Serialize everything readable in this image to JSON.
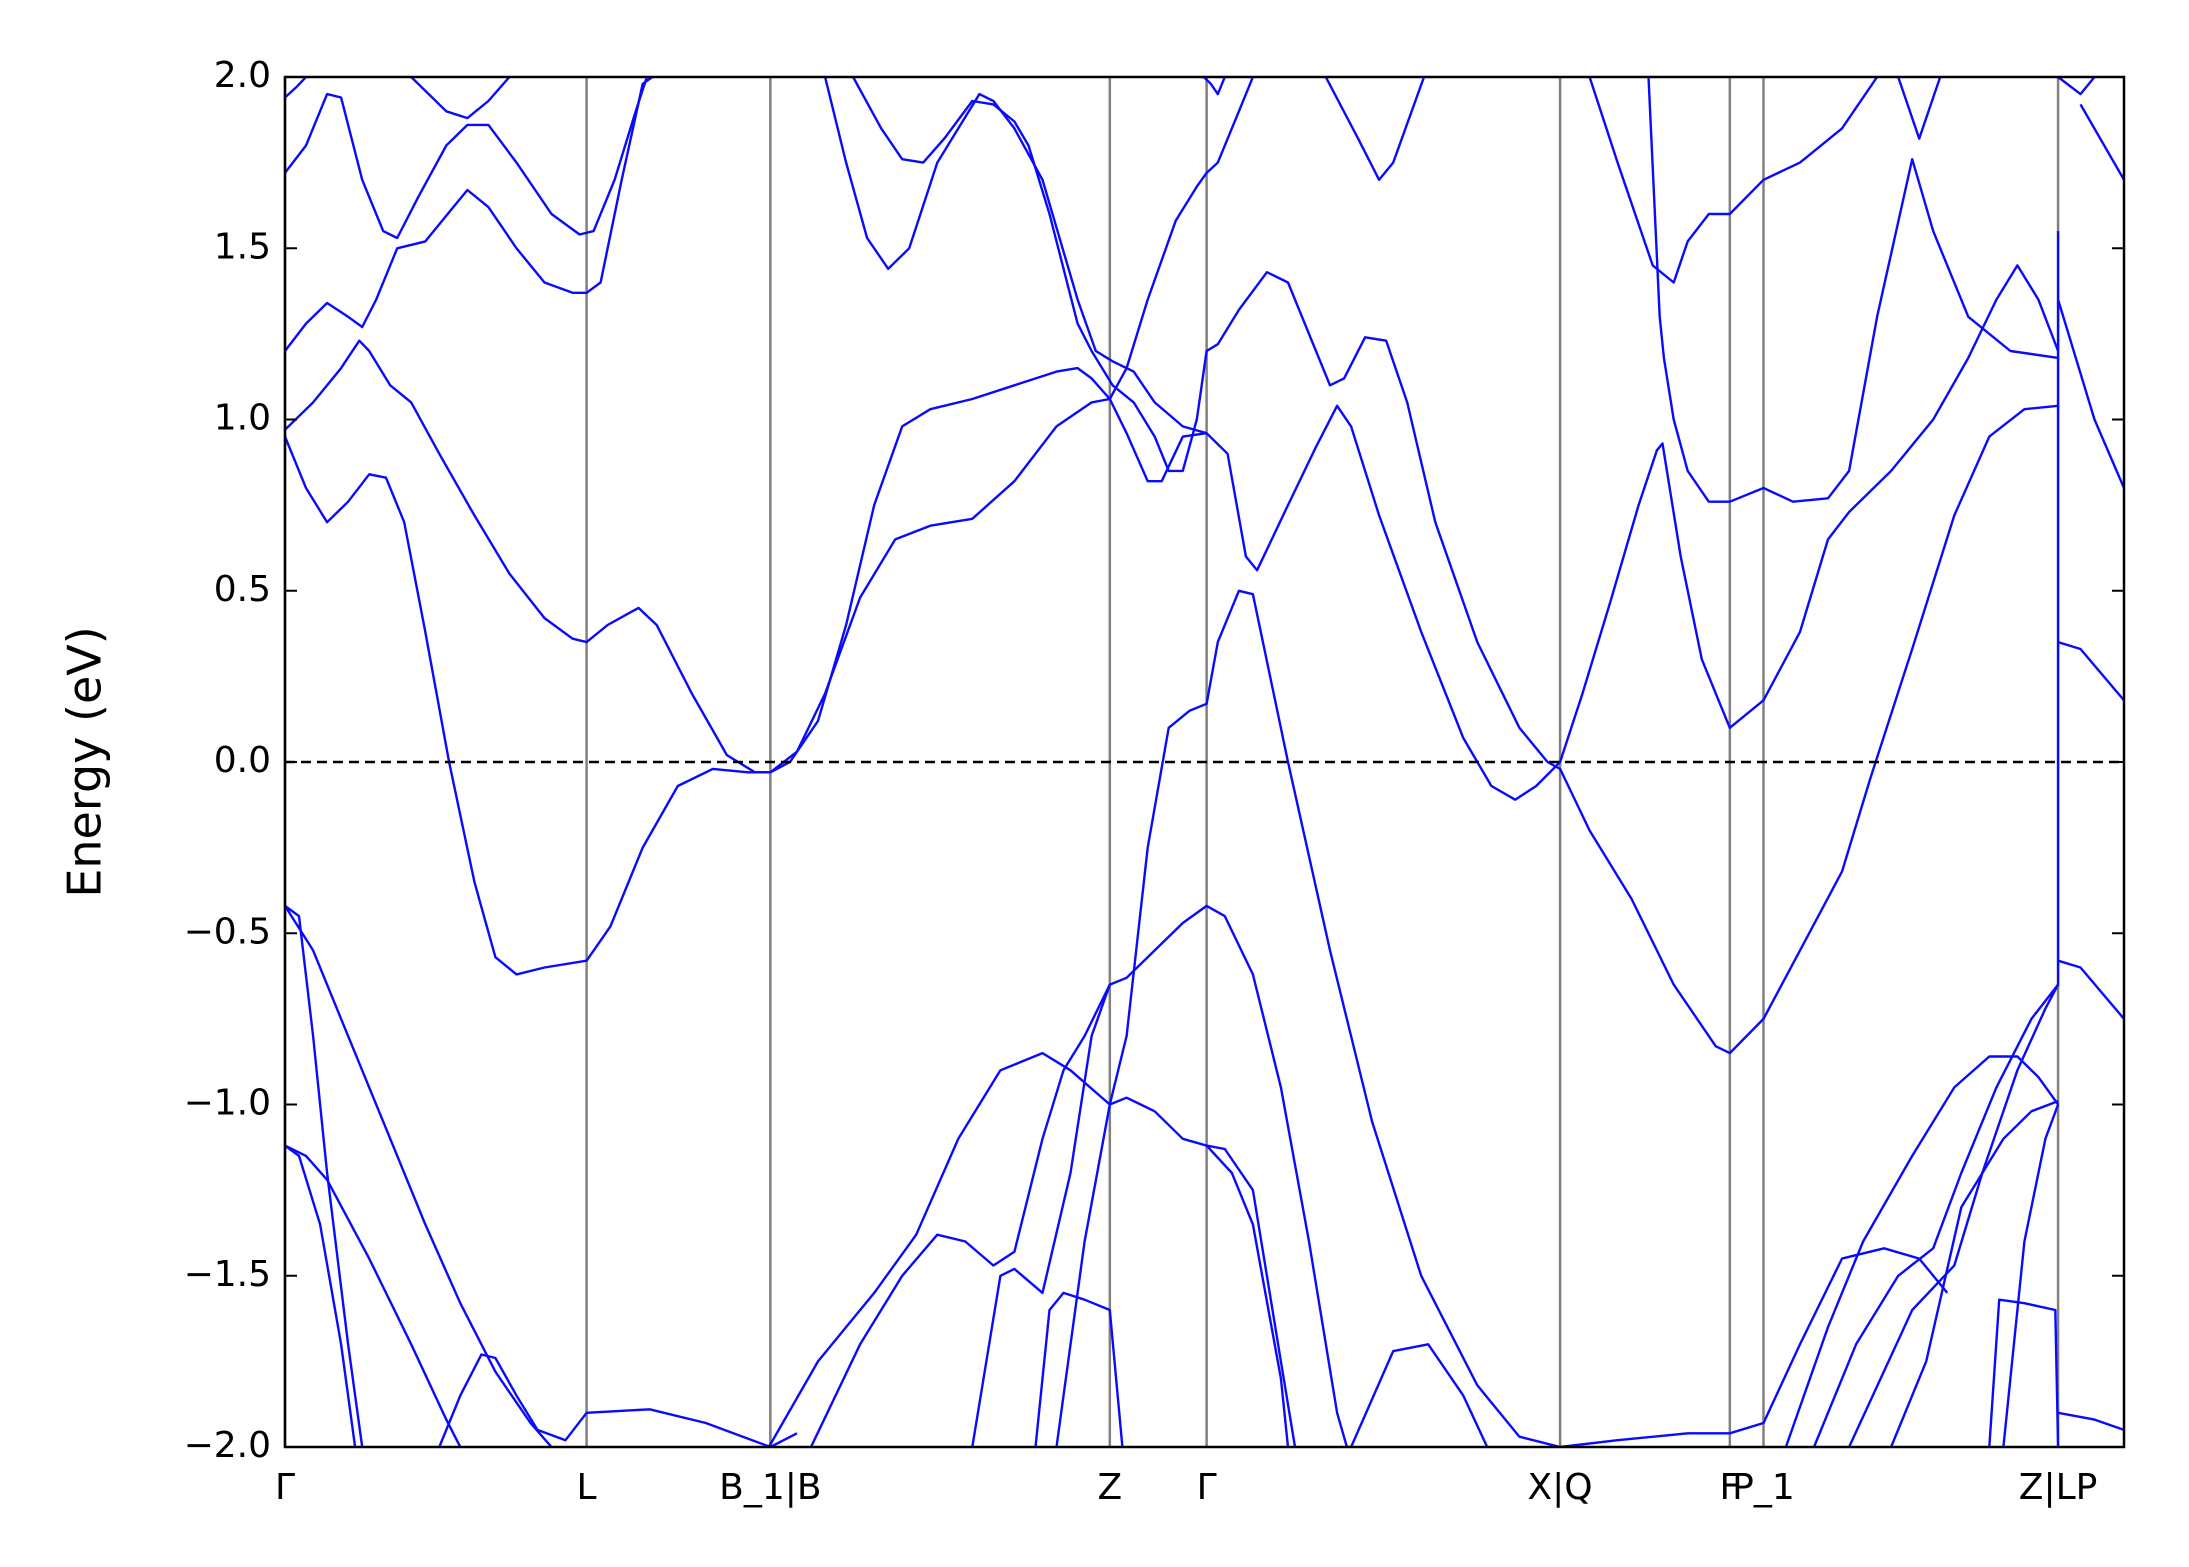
{
  "chart_data": {
    "type": "line",
    "ylabel": "Energy (eV)",
    "color": "#0a0aff",
    "xlim": [
      0,
      1311
    ],
    "ylim": [
      -2,
      2
    ],
    "xticks": [
      {
        "value": 0,
        "label": "Γ"
      },
      {
        "value": 215,
        "label": "L"
      },
      {
        "value": 346,
        "label": "B_1|B"
      },
      {
        "value": 588,
        "label": "Z"
      },
      {
        "value": 657,
        "label": "Γ"
      },
      {
        "value": 909,
        "label": "X|Q"
      },
      {
        "value": 1030,
        "label": "F"
      },
      {
        "value": 1054,
        "label": "P_1"
      },
      {
        "value": 1264,
        "label": "Z|LP"
      }
    ],
    "yticks": [
      {
        "value": -2,
        "label": "−2.0"
      },
      {
        "value": -1.5,
        "label": "−1.5"
      },
      {
        "value": -1,
        "label": "−1.0"
      },
      {
        "value": -0.5,
        "label": "−0.5"
      },
      {
        "value": 0,
        "label": "0.0"
      },
      0.5,
      {
        "value": 1,
        "label": "1.0"
      },
      1.5,
      {
        "value": 2,
        "label": "2.0"
      }
    ],
    "fermi_level": 0,
    "series": [
      {
        "x": [
          0,
          15,
          30,
          45,
          60,
          72,
          85,
          100,
          117,
          135,
          150,
          165,
          185,
          215,
          232,
          255,
          280,
          305,
          330,
          346,
          365,
          385,
          410,
          435,
          460,
          490,
          520,
          550,
          575,
          588,
          600,
          615,
          625,
          640,
          657,
          672,
          685,
          693,
          715,
          735,
          750,
          760,
          780,
          810,
          840,
          860,
          877,
          892,
          909,
          925,
          945,
          965,
          978,
          982,
          995,
          1010,
          1030,
          1054,
          1080,
          1100,
          1115,
          1145,
          1175,
          1200,
          1220,
          1235,
          1250,
          1264
        ],
        "values": [
          0.95,
          0.8,
          0.7,
          0.76,
          0.84,
          0.83,
          0.7,
          0.38,
          0,
          -0.35,
          -0.57,
          -0.62,
          -0.6,
          -0.58,
          -0.48,
          -0.25,
          -0.07,
          -0.02,
          -0.03,
          -0.03,
          0.03,
          0.2,
          0.48,
          0.65,
          0.69,
          0.71,
          0.82,
          0.98,
          1.05,
          1.06,
          0.96,
          0.82,
          0.82,
          0.95,
          0.96,
          0.9,
          0.6,
          0.56,
          0.75,
          0.92,
          1.04,
          0.98,
          0.72,
          0.38,
          0.07,
          -0.07,
          -0.11,
          -0.07,
          0,
          0.2,
          0.47,
          0.75,
          0.91,
          0.93,
          0.6,
          0.3,
          0.1,
          0.18,
          0.38,
          0.65,
          0.73,
          0.85,
          1.0,
          1.18,
          1.35,
          1.45,
          1.35,
          1.2
        ]
      },
      {
        "x": [
          0,
          15,
          30,
          45,
          55,
          65,
          80,
          100,
          120,
          130,
          145,
          165,
          185,
          205,
          215,
          225,
          240,
          255,
          262
        ],
        "values": [
          1.2,
          1.28,
          1.34,
          1.3,
          1.27,
          1.35,
          1.5,
          1.52,
          1.62,
          1.67,
          1.62,
          1.5,
          1.4,
          1.37,
          1.37,
          1.4,
          1.7,
          1.98,
          2
        ]
      },
      {
        "x": [
          0,
          20,
          40,
          53,
          60,
          75,
          90,
          110,
          135,
          160,
          185,
          205,
          215,
          230,
          252,
          265,
          290,
          315,
          335,
          346,
          360,
          380,
          400,
          420,
          440,
          460,
          490,
          520,
          550,
          565,
          575,
          588,
          600,
          615,
          635,
          650,
          657,
          665,
          680,
          690
        ],
        "values": [
          0.97,
          1.05,
          1.15,
          1.23,
          1.2,
          1.1,
          1.05,
          0.9,
          0.72,
          0.55,
          0.42,
          0.36,
          0.35,
          0.4,
          0.45,
          0.4,
          0.2,
          0.02,
          -0.03,
          -0.03,
          0,
          0.12,
          0.4,
          0.75,
          0.98,
          1.03,
          1.06,
          1.1,
          1.14,
          1.15,
          1.12,
          1.06,
          1.15,
          1.35,
          1.58,
          1.68,
          1.72,
          1.75,
          1.9,
          2
        ]
      },
      {
        "x": [
          385,
          400,
          415,
          430,
          445,
          465,
          480,
          495,
          505,
          520,
          540,
          565,
          578,
          590,
          605,
          620,
          640,
          657
        ],
        "values": [
          2,
          1.75,
          1.53,
          1.44,
          1.5,
          1.75,
          1.85,
          1.95,
          1.93,
          1.85,
          1.7,
          1.35,
          1.2,
          1.17,
          1.14,
          1.05,
          0.98,
          0.96
        ]
      },
      {
        "x": [
          405,
          425,
          440,
          455,
          470,
          490,
          505,
          520,
          530,
          545,
          565,
          575,
          590,
          605,
          620,
          630,
          640,
          650,
          657,
          665,
          680,
          700,
          715,
          730,
          745,
          755,
          770,
          785,
          800,
          820,
          850,
          880,
          900,
          909,
          930,
          960,
          990,
          1020,
          1030,
          1054,
          1080,
          1110,
          1130,
          1160,
          1190,
          1215,
          1240,
          1264
        ],
        "values": [
          2,
          1.85,
          1.76,
          1.75,
          1.82,
          1.93,
          1.92,
          1.87,
          1.8,
          1.6,
          1.28,
          1.2,
          1.1,
          1.05,
          0.95,
          0.85,
          0.85,
          1.0,
          1.2,
          1.22,
          1.32,
          1.43,
          1.4,
          1.25,
          1.1,
          1.12,
          1.24,
          1.23,
          1.05,
          0.7,
          0.35,
          0.1,
          0,
          -0.02,
          -0.2,
          -0.4,
          -0.65,
          -0.83,
          -0.85,
          -0.75,
          -0.55,
          -0.32,
          -0.05,
          0.33,
          0.72,
          0.95,
          1.03,
          1.04
        ]
      },
      {
        "x": [
          0,
          15,
          30,
          40,
          55,
          70,
          80,
          95,
          115,
          130,
          145,
          165,
          190,
          210,
          220,
          235,
          250,
          258
        ],
        "values": [
          1.72,
          1.8,
          1.95,
          1.94,
          1.7,
          1.55,
          1.53,
          1.65,
          1.8,
          1.86,
          1.86,
          1.75,
          1.6,
          1.54,
          1.55,
          1.7,
          1.9,
          2
        ]
      },
      {
        "x": [
          0,
          8,
          15
        ],
        "values": [
          1.94,
          1.97,
          2
        ]
      },
      {
        "x": [
          90,
          115,
          130,
          145,
          160
        ],
        "values": [
          2,
          1.9,
          1.88,
          1.93,
          2
        ]
      },
      {
        "x": [
          655,
          660,
          665,
          670
        ],
        "values": [
          2,
          1.98,
          1.95,
          2
        ]
      },
      {
        "x": [
          742,
          765,
          780,
          790,
          812
        ],
        "values": [
          2,
          1.82,
          1.7,
          1.75,
          2
        ]
      },
      {
        "x": [
          930,
          950,
          975,
          990,
          1000,
          1015,
          1030,
          1054,
          1080,
          1110,
          1135
        ],
        "values": [
          2,
          1.75,
          1.45,
          1.4,
          1.52,
          1.6,
          1.6,
          1.7,
          1.75,
          1.85,
          2
        ]
      },
      {
        "x": [
          972,
          980,
          983,
          990,
          1000,
          1015,
          1030,
          1054,
          1075,
          1100,
          1115,
          1135,
          1160,
          1175,
          1200,
          1230,
          1264
        ],
        "values": [
          2,
          1.3,
          1.18,
          1.0,
          0.85,
          0.76,
          0.76,
          0.8,
          0.76,
          0.77,
          0.85,
          1.3,
          1.76,
          1.55,
          1.3,
          1.2,
          1.18
        ]
      },
      {
        "x": [
          1150,
          1165,
          1180
        ],
        "values": [
          2,
          1.82,
          2
        ]
      },
      {
        "x": [
          1264,
          1290,
          1311
        ],
        "values": [
          1.35,
          1.0,
          0.8
        ]
      },
      {
        "x": [
          1264,
          1280,
          1311
        ],
        "values": [
          0.35,
          0.33,
          0.18
        ]
      },
      {
        "x": [
          1264,
          1280,
          1290
        ],
        "values": [
          2,
          1.95,
          2
        ]
      },
      {
        "x": [
          1280,
          1311
        ],
        "values": [
          1.92,
          1.7
        ]
      },
      {
        "x": [
          0,
          20,
          40,
          70,
          100,
          125,
          150,
          175,
          190
        ],
        "values": [
          -0.42,
          -0.55,
          -0.75,
          -1.05,
          -1.35,
          -1.58,
          -1.78,
          -1.93,
          -2
        ]
      },
      {
        "x": [
          0,
          10,
          20,
          30,
          45,
          55
        ],
        "values": [
          -0.42,
          -0.45,
          -0.8,
          -1.2,
          -1.7,
          -2
        ]
      },
      {
        "x": [
          0,
          15,
          30,
          60,
          90,
          115,
          125
        ],
        "values": [
          -1.12,
          -1.15,
          -1.22,
          -1.45,
          -1.7,
          -1.92,
          -2
        ]
      },
      {
        "x": [
          0,
          10,
          25,
          40,
          50
        ],
        "values": [
          -1.12,
          -1.15,
          -1.35,
          -1.7,
          -2
        ]
      },
      {
        "x": [
          110,
          125,
          140,
          150,
          165,
          180,
          200,
          215,
          260,
          300,
          346,
          365
        ],
        "values": [
          -2,
          -1.85,
          -1.73,
          -1.74,
          -1.85,
          -1.95,
          -1.98,
          -1.9,
          -1.89,
          -1.93,
          -2,
          -1.96
        ]
      },
      {
        "x": [
          375,
          410,
          440,
          465,
          485,
          505,
          520,
          540,
          555,
          570,
          588,
          600,
          620,
          640,
          657,
          670,
          690,
          710,
          730,
          750,
          757
        ],
        "values": [
          -2,
          -1.7,
          -1.5,
          -1.38,
          -1.4,
          -1.47,
          -1.43,
          -1.1,
          -0.9,
          -0.8,
          -0.65,
          -0.63,
          -0.55,
          -0.47,
          -0.42,
          -0.45,
          -0.62,
          -0.95,
          -1.4,
          -1.9,
          -2
        ]
      },
      {
        "x": [
          345,
          380,
          420,
          450,
          480,
          510,
          540,
          560,
          588,
          600,
          620,
          640,
          657,
          670,
          690,
          710,
          720
        ],
        "values": [
          -2,
          -1.75,
          -1.55,
          -1.38,
          -1.1,
          -0.9,
          -0.85,
          -0.9,
          -1.0,
          -0.98,
          -1.02,
          -1.1,
          -1.12,
          -1.13,
          -1.25,
          -1.75,
          -2
        ]
      },
      {
        "x": [
          490,
          510,
          520,
          540,
          560,
          575,
          588
        ],
        "values": [
          -2,
          -1.5,
          -1.48,
          -1.55,
          -1.2,
          -0.8,
          -0.65
        ]
      },
      {
        "x": [
          535,
          545,
          555,
          570,
          588,
          597
        ],
        "values": [
          -2,
          -1.6,
          -1.55,
          -1.57,
          -1.6,
          -2
        ]
      },
      {
        "x": [
          550,
          570,
          588,
          600,
          615,
          630,
          645,
          657,
          665,
          680,
          690,
          715,
          745,
          775,
          810,
          850,
          880,
          909,
          950,
          1000,
          1030,
          1054,
          1080,
          1110,
          1140,
          1165,
          1185
        ],
        "values": [
          -2,
          -1.4,
          -1.0,
          -0.8,
          -0.25,
          0.1,
          0.15,
          0.17,
          0.35,
          0.5,
          0.49,
          0,
          -0.55,
          -1.05,
          -1.5,
          -1.82,
          -1.97,
          -2,
          -1.98,
          -1.96,
          -1.96,
          -1.93,
          -1.7,
          -1.45,
          -1.42,
          -1.45,
          -1.55
        ]
      },
      {
        "x": [
          760,
          790,
          815,
          840,
          857
        ],
        "values": [
          -2,
          -1.72,
          -1.7,
          -1.85,
          -2
        ]
      },
      {
        "x": [
          657,
          675,
          690,
          710,
          715
        ],
        "values": [
          -1.12,
          -1.2,
          -1.35,
          -1.8,
          -2
        ]
      },
      {
        "x": [
          1070,
          1100,
          1125,
          1160,
          1190,
          1215,
          1235,
          1250,
          1264
        ],
        "values": [
          -2,
          -1.65,
          -1.4,
          -1.15,
          -0.95,
          -0.86,
          -0.86,
          -0.92,
          -1.0
        ]
      },
      {
        "x": [
          1090,
          1120,
          1150,
          1175,
          1195,
          1220,
          1245,
          1264
        ],
        "values": [
          -2,
          -1.7,
          -1.5,
          -1.42,
          -1.2,
          -0.95,
          -0.75,
          -0.65
        ]
      },
      {
        "x": [
          1115,
          1160,
          1190,
          1210,
          1235,
          1255,
          1264
        ],
        "values": [
          -2,
          -1.6,
          -1.47,
          -1.2,
          -0.9,
          -0.72,
          -0.65
        ]
      },
      {
        "x": [
          1145,
          1170,
          1195,
          1225,
          1245,
          1264
        ],
        "values": [
          -2,
          -1.75,
          -1.3,
          -1.1,
          -1.02,
          -0.99
        ]
      },
      {
        "x": [
          1215,
          1222,
          1240,
          1262,
          1264
        ],
        "values": [
          -2,
          -1.57,
          -1.58,
          -1.6,
          -2
        ]
      },
      {
        "x": [
          1225,
          1240,
          1255,
          1264
        ],
        "values": [
          -2,
          -1.4,
          -1.1,
          -1.0
        ]
      },
      {
        "x": [
          1264,
          1280,
          1311
        ],
        "values": [
          -0.58,
          -0.6,
          -0.75
        ]
      },
      {
        "x": [
          1264,
          1290,
          1311
        ],
        "values": [
          -1.9,
          -1.92,
          -1.95
        ]
      },
      {
        "x": [
          1264,
          1264
        ],
        "values": [
          1.55,
          -0.65
        ]
      }
    ]
  }
}
